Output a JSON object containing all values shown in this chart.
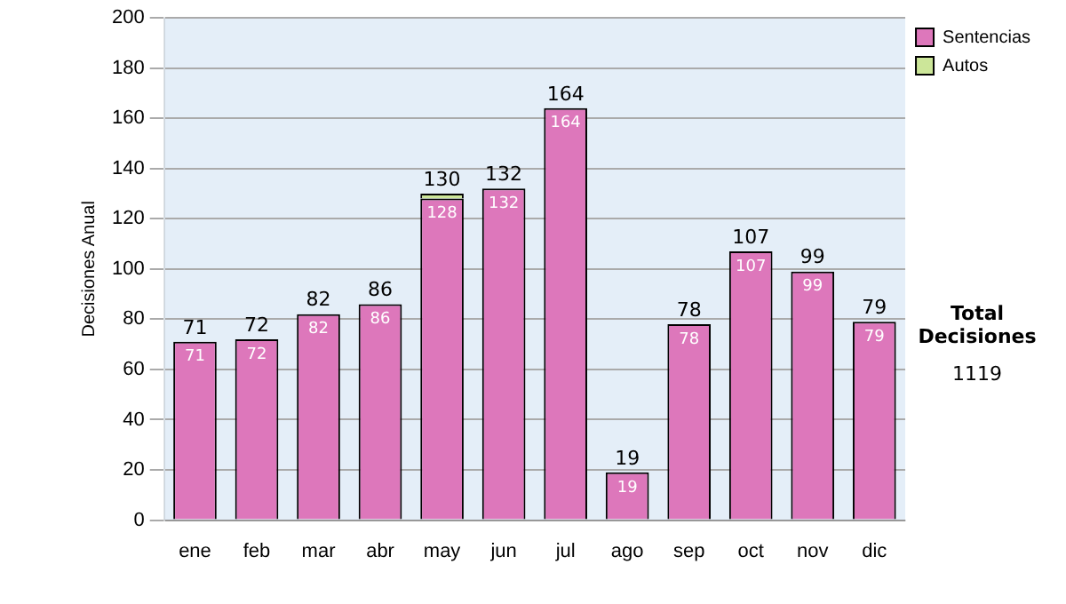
{
  "chart_data": {
    "type": "bar",
    "stacked": true,
    "ylabel": "Decisiones Anual",
    "categories": [
      "ene",
      "feb",
      "mar",
      "abr",
      "may",
      "jun",
      "jul",
      "ago",
      "sep",
      "oct",
      "nov",
      "dic"
    ],
    "series": [
      {
        "name": "Sentencias",
        "color": "#dd77bb",
        "values": [
          71,
          72,
          82,
          86,
          128,
          132,
          164,
          19,
          78,
          107,
          99,
          79
        ],
        "value_labels": [
          "71",
          "72",
          "82",
          "86",
          "128",
          "132",
          "164",
          "19",
          "78",
          "107",
          "99",
          "79"
        ]
      },
      {
        "name": "Autos",
        "color": "#cce699",
        "values": [
          0,
          0,
          0,
          0,
          2,
          0,
          0,
          0,
          0,
          0,
          0,
          0
        ]
      }
    ],
    "totals": [
      "71",
      "72",
      "82",
      "86",
      "130",
      "132",
      "164",
      "19",
      "78",
      "107",
      "99",
      "79"
    ],
    "ylim": [
      0,
      200
    ],
    "yticks": [
      0,
      20,
      40,
      60,
      80,
      100,
      120,
      140,
      160,
      180,
      200
    ],
    "grid": "y",
    "legend": "right",
    "annotations": [
      "Total Decisiones",
      "1119"
    ]
  }
}
